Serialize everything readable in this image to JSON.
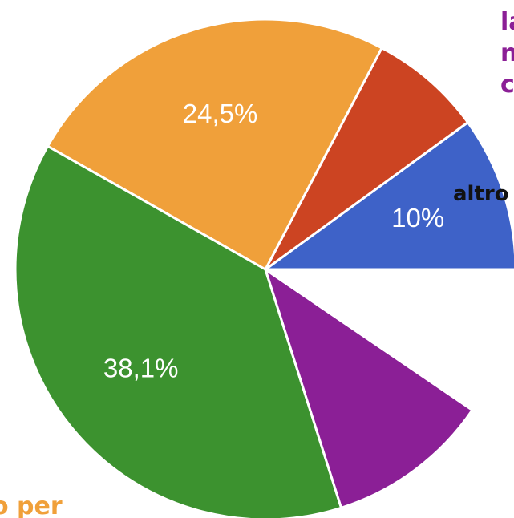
{
  "chart_data": {
    "type": "pie",
    "slices": [
      {
        "label": "",
        "value_label": "10%",
        "value": 10.0,
        "color": "#3e62c8"
      },
      {
        "label": "",
        "value_label": "",
        "value": 7.3,
        "color": "#cc4422"
      },
      {
        "label": "",
        "value_label": "24,5%",
        "value": 24.5,
        "color": "#f0a03a"
      },
      {
        "label": "",
        "value_label": "38,1%",
        "value": 38.1,
        "color": "#3c922f"
      },
      {
        "label": "",
        "value_label": "",
        "value": 10.6,
        "color": "#8b1f96"
      },
      {
        "label": "",
        "value_label": "",
        "value": 9.5,
        "color": "#ffffff"
      }
    ],
    "start_direction": "right (3 o'clock), counter-clockwise",
    "legend_placement": "none",
    "external_labels": [
      {
        "id": "purple",
        "lines": [
          "la",
          "n",
          "c"
        ],
        "color": "#8b1f96"
      },
      {
        "id": "altro",
        "lines": [
          "altro"
        ],
        "color": "#111111"
      },
      {
        "id": "orange",
        "lines": [
          "o per"
        ],
        "color": "#f0a03a"
      }
    ]
  }
}
